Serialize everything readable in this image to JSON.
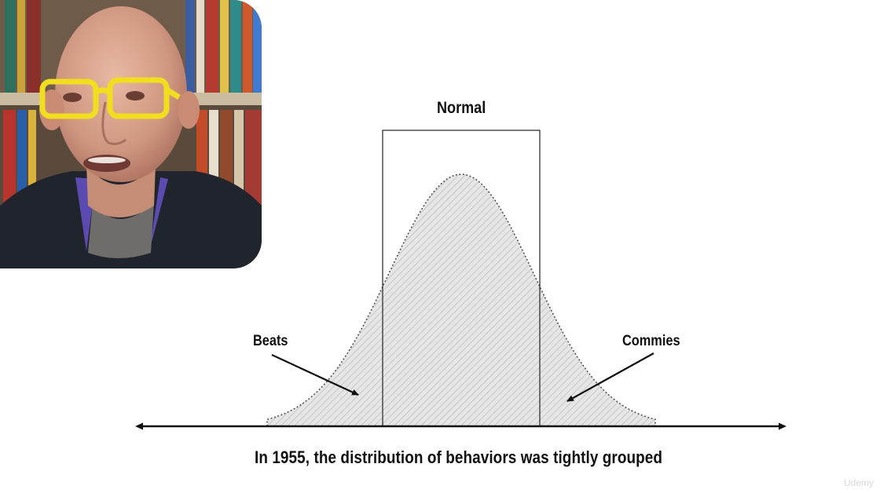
{
  "diagram": {
    "title": "Normal",
    "left_label": "Beats",
    "right_label": "Commies",
    "caption": "In 1955, the distribution of behaviors was tightly grouped"
  },
  "watermark": "Udemy",
  "colors": {
    "curve_fill": "#e6e6e6",
    "hatch": "#b9b9b9",
    "outline": "#222222",
    "glasses": "#f1de1f",
    "shirt": "#20242d"
  }
}
